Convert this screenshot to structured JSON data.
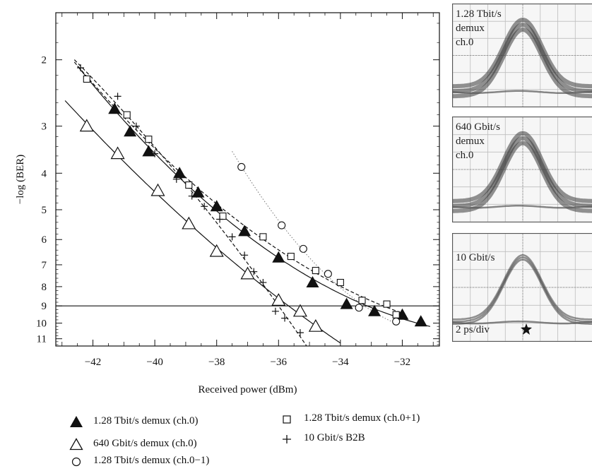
{
  "chart_data": {
    "type": "scatter",
    "xlabel": "Received power (dBm)",
    "ylabel": "−log (BER)",
    "xlim": [
      -43.2,
      -30.8
    ],
    "x_ticks": [
      -42,
      -40,
      -38,
      -36,
      -34,
      -32
    ],
    "x_tick_labels": [
      "−42",
      "−40",
      "−38",
      "−36",
      "−34",
      "−32"
    ],
    "y_ticks": [
      2,
      3,
      4,
      5,
      6,
      7,
      8,
      9,
      10,
      11
    ],
    "y_tick_labels": [
      "2",
      "3",
      "4",
      "5",
      "6",
      "7",
      "8",
      "9",
      "10",
      "11"
    ],
    "y_scale": "inverted-log-of-ber",
    "reference_line_y": 9,
    "series": [
      {
        "name": "1.28 Tbit/s demux (ch.0)",
        "marker": "filled-triangle",
        "fit_style": "solid",
        "x": [
          -41.3,
          -40.8,
          -40.2,
          -39.2,
          -38.6,
          -38.0,
          -37.1,
          -36.0,
          -34.9,
          -33.8,
          -32.9,
          -32.0,
          -31.4
        ],
        "y": [
          2.7,
          3.1,
          3.5,
          4.0,
          4.5,
          4.9,
          5.7,
          6.7,
          7.8,
          8.9,
          9.3,
          9.5,
          9.9
        ]
      },
      {
        "name": "640 Gbit/s demux (ch.0)",
        "marker": "open-triangle",
        "fit_style": "solid",
        "x": [
          -42.2,
          -41.2,
          -39.9,
          -38.9,
          -38.0,
          -37.0,
          -36.0,
          -35.3,
          -34.8
        ],
        "y": [
          3.0,
          3.55,
          4.45,
          5.45,
          6.45,
          7.4,
          8.7,
          9.3,
          10.2
        ]
      },
      {
        "name": "1.28 Tbit/s demux (ch.0−1)",
        "marker": "open-circle",
        "fit_style": "dotted",
        "x": [
          -37.2,
          -35.9,
          -35.2,
          -34.4,
          -33.4,
          -32.2
        ],
        "y": [
          3.85,
          5.5,
          6.35,
          7.4,
          9.1,
          9.9
        ]
      },
      {
        "name": "1.28 Tbit/s demux (ch.0+1)",
        "marker": "open-square",
        "fit_style": "dashed",
        "x": [
          -42.2,
          -40.9,
          -40.2,
          -38.9,
          -37.8,
          -36.5,
          -35.6,
          -34.8,
          -34.0,
          -33.3,
          -32.5,
          -32.2
        ],
        "y": [
          2.25,
          2.8,
          3.25,
          4.3,
          5.2,
          5.9,
          6.65,
          7.25,
          7.8,
          8.7,
          8.9,
          9.5
        ]
      },
      {
        "name": "10 Gbit/s B2B",
        "marker": "plus",
        "fit_style": "dashed",
        "x": [
          -42.4,
          -41.2,
          -40.6,
          -40.0,
          -39.3,
          -38.8,
          -38.4,
          -37.9,
          -37.5,
          -37.1,
          -36.8,
          -36.5,
          -36.1,
          -35.8,
          -35.3
        ],
        "y": [
          2.1,
          2.5,
          3.0,
          3.55,
          4.15,
          4.6,
          4.9,
          5.3,
          5.9,
          6.6,
          7.3,
          7.8,
          9.3,
          9.7,
          10.6
        ]
      }
    ],
    "legend_placement": "below"
  },
  "eye_diagrams": [
    {
      "label": "1.28 Tbit/s\ndemux\nch.0"
    },
    {
      "label": "640 Gbit/s\ndemux\nch.0"
    },
    {
      "label": "10 Gbit/s"
    }
  ],
  "eye_scale_label": "2 ps/div"
}
